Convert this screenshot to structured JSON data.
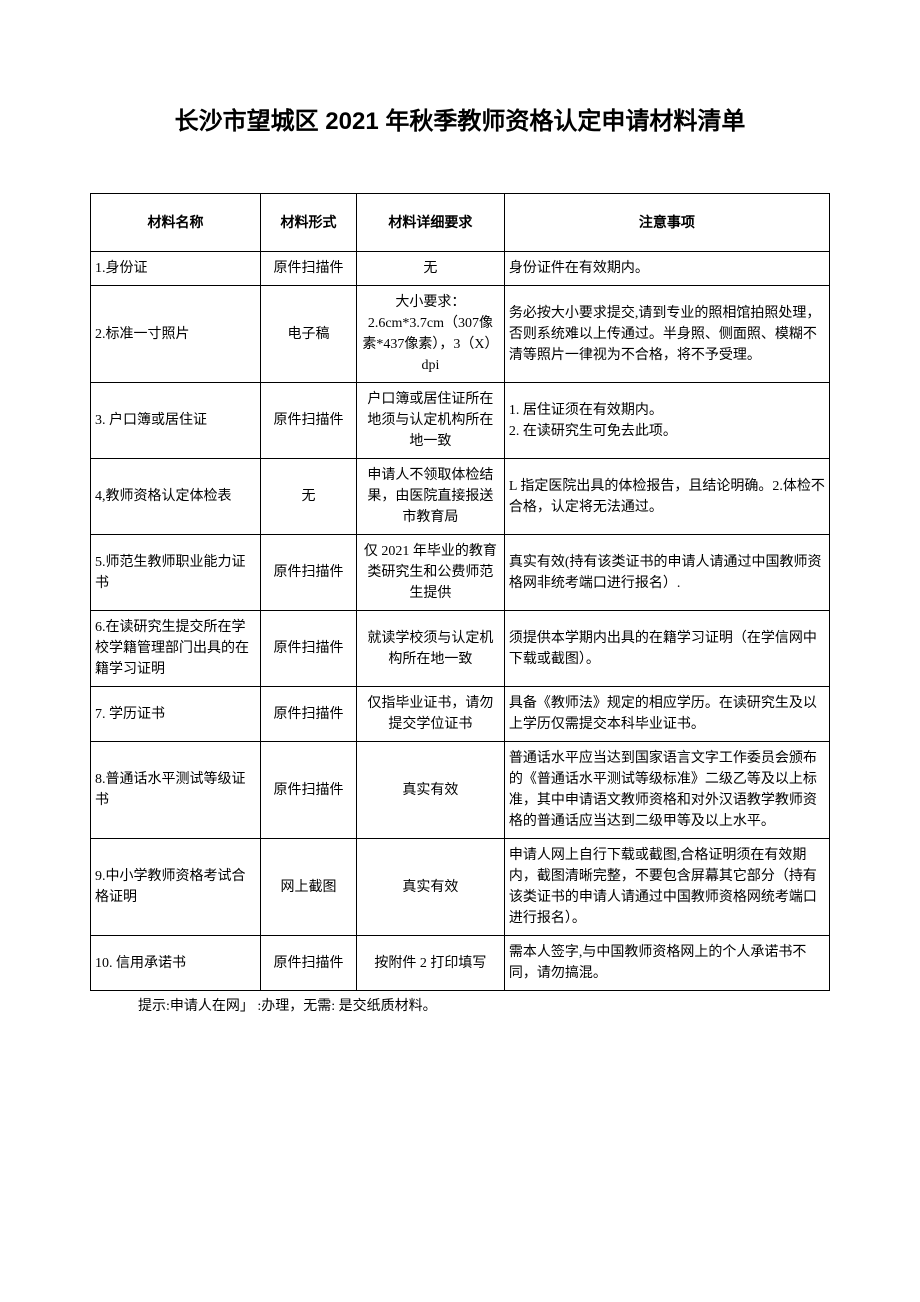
{
  "title": "长沙市望城区 2021 年秋季教师资格认定申请材料清单",
  "headers": {
    "name": "材料名称",
    "form": "材料形式",
    "detail": "材料详细要求",
    "note": "注意事项"
  },
  "rows": [
    {
      "name": "1.身份证",
      "form": "原件扫描件",
      "detail": "无",
      "note": "身份证件在有效期内。"
    },
    {
      "name": "2.标准一寸照片",
      "form": "电子稿",
      "detail": "大小要求：2.6cm*3.7cm（307像素*437像素），3（X）dpi",
      "note": "务必按大小要求提交,请到专业的照相馆拍照处理，否则系统难以上传通过。半身照、侧面照、模糊不清等照片一律视为不合格，将不予受理。"
    },
    {
      "name": "3. 户口簿或居住证",
      "form": "原件扫描件",
      "detail": "户口簿或居住证所在地须与认定机构所在地一致",
      "note": "1. 居住证须在有效期内。\n2. 在读研究生可免去此项。"
    },
    {
      "name": "4,教师资格认定体检表",
      "form": "无",
      "detail": "申请人不领取体检结果，由医院直接报送市教育局",
      "note": "L 指定医院出具的体检报告，且结论明确。2.体检不合格，认定将无法通过。"
    },
    {
      "name": "5.师范生教师职业能力证书",
      "form": "原件扫描件",
      "detail": "仅 2021 年毕业的教育类研究生和公费师范生提供",
      "note": "真实有效(持有该类证书的申请人请通过中国教师资格网非统考端口进行报名）."
    },
    {
      "name": "6.在读研究生提交所在学校学籍管理部门出具的在籍学习证明",
      "form": "原件扫描件",
      "detail": "就读学校须与认定机构所在地一致",
      "note": "须提供本学期内出具的在籍学习证明（在学信网中下载或截图）。"
    },
    {
      "name": "7. 学历证书",
      "form": "原件扫描件",
      "detail": "仅指毕业证书，请勿提交学位证书",
      "note": "具备《教师法》规定的相应学历。在读研究生及以上学历仅需提交本科毕业证书。"
    },
    {
      "name": "8.普通话水平测试等级证书",
      "form": "原件扫描件",
      "detail": "真实有效",
      "note": "普通话水平应当达到国家语言文字工作委员会颁布的《普通话水平测试等级标准》二级乙等及以上标准，其中申请语文教师资格和对外汉语教学教师资格的普通话应当达到二级甲等及以上水平。"
    },
    {
      "name": "9.中小学教师资格考试合格证明",
      "form": "网上截图",
      "detail": "真实有效",
      "note": "申请人网上自行下载或截图,合格证明须在有效期内，截图清晰完整，不要包含屏幕其它部分（持有该类证书的申请人请通过中国教师资格网统考端口进行报名）。"
    },
    {
      "name": "10. 信用承诺书",
      "form": "原件扫描件",
      "detail": "按附件 2 打印填写",
      "note": "需本人签字,与中国教师资格网上的个人承诺书不同，请勿搞混。"
    }
  ],
  "footnote": "提示:申请人在网」 :办理，无需: 是交纸质材料。"
}
